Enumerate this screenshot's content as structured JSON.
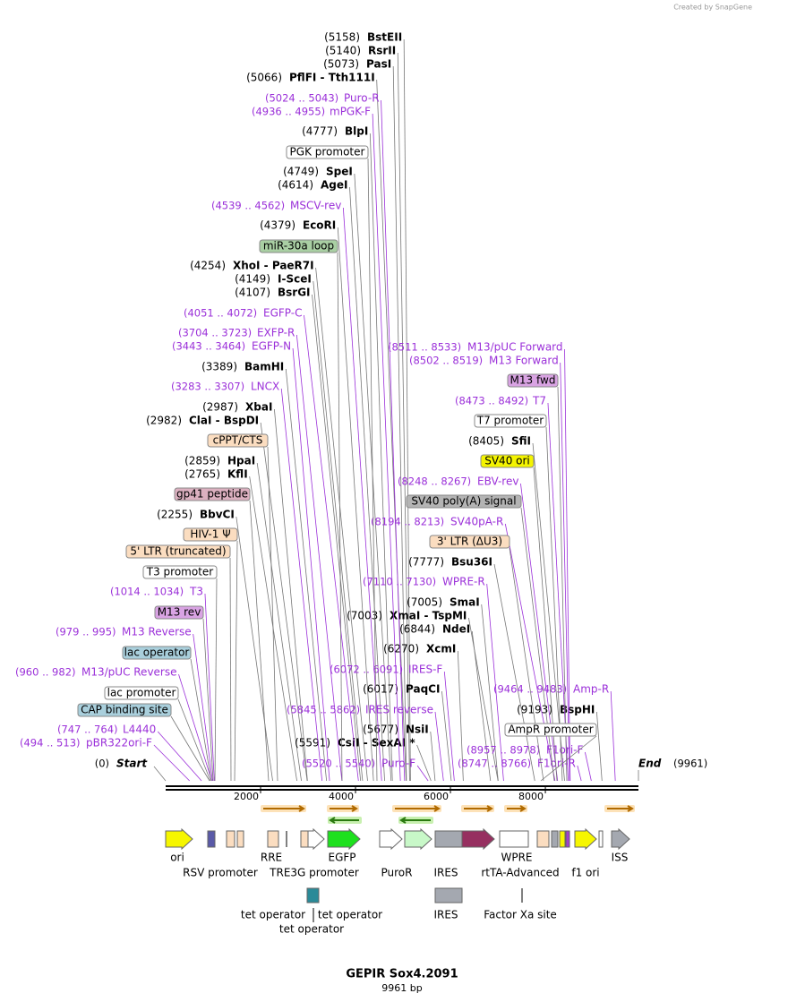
{
  "header": {
    "credit": "Created by SnapGene"
  },
  "enzymes": [
    {
      "location": "(5158)",
      "name": "BstEII"
    },
    {
      "location": "(5140)",
      "name": "RsrII"
    },
    {
      "location": "(5073)",
      "name": "PasI"
    },
    {
      "location": "(5066)",
      "name": "PflFI  - Tth111I"
    },
    {
      "location": "(4777)",
      "name": "BlpI"
    },
    {
      "location": "(4749)",
      "name": "SpeI"
    },
    {
      "location": "(4614)",
      "name": "AgeI"
    },
    {
      "location": "(4379)",
      "name": "EcoRI"
    },
    {
      "location": "(4254)",
      "name": "XhoI  - PaeR7I"
    },
    {
      "location": "(4149)",
      "name": "I-SceI"
    },
    {
      "location": "(4107)",
      "name": "BsrGI"
    },
    {
      "location": "(3389)",
      "name": "BamHI"
    },
    {
      "location": "(2987)",
      "name": "XbaI"
    },
    {
      "location": "(2982)",
      "name": "ClaI  - BspDI"
    },
    {
      "location": "(2859)",
      "name": "HpaI"
    },
    {
      "location": "(2765)",
      "name": "KflI"
    },
    {
      "location": "(2255)",
      "name": "BbvCI"
    },
    {
      "location": "(8405)",
      "name": "SfiI"
    },
    {
      "location": "(7777)",
      "name": "Bsu36I"
    },
    {
      "location": "(7005)",
      "name": "SmaI"
    },
    {
      "location": "(7003)",
      "name": "XmaI  - TspMI"
    },
    {
      "location": "(6844)",
      "name": "NdeI"
    },
    {
      "location": "(6270)",
      "name": "XcmI"
    },
    {
      "location": "(6017)",
      "name": "PaqCI"
    },
    {
      "location": "(5677)",
      "name": "NsiI"
    },
    {
      "location": "(5591)",
      "name": "CsiI  - SexAI *"
    },
    {
      "location": "(9193)",
      "name": "BspHI"
    }
  ],
  "primers": [
    {
      "location": "(5024 .. 5043)",
      "name": "Puro-R"
    },
    {
      "location": "(4936 .. 4955)",
      "name": "mPGK-F"
    },
    {
      "location": "(4539 .. 4562)",
      "name": "MSCV-rev"
    },
    {
      "location": "(4051 .. 4072)",
      "name": "EGFP-C"
    },
    {
      "location": "(3704 .. 3723)",
      "name": "EXFP-R"
    },
    {
      "location": "(3443 .. 3464)",
      "name": "EGFP-N"
    },
    {
      "location": "(3283 .. 3307)",
      "name": "LNCX"
    },
    {
      "location": "(8511 .. 8533)",
      "name": "M13/pUC Forward"
    },
    {
      "location": "(8502 .. 8519)",
      "name": "M13 Forward"
    },
    {
      "location": "(8473 .. 8492)",
      "name": "T7"
    },
    {
      "location": "(8248 .. 8267)",
      "name": "EBV-rev"
    },
    {
      "location": "(8194 .. 8213)",
      "name": "SV40pA-R"
    },
    {
      "location": "(7110 .. 7130)",
      "name": "WPRE-R"
    },
    {
      "location": "(1014 .. 1034)",
      "name": "T3"
    },
    {
      "location": "(979 .. 995)",
      "name": "M13 Reverse"
    },
    {
      "location": "(960 .. 982)",
      "name": "M13/pUC Reverse"
    },
    {
      "location": "(6072 .. 6091)",
      "name": "IRES-F"
    },
    {
      "location": "(5845 .. 5862)",
      "name": "IRES reverse"
    },
    {
      "location": "(9464 .. 9483)",
      "name": "Amp-R"
    },
    {
      "location": "(8957 .. 8978)",
      "name": "F1ori-F"
    },
    {
      "location": "(747 .. 764)",
      "name": "L4440"
    },
    {
      "location": "(494 .. 513)",
      "name": "pBR322ori-F"
    },
    {
      "location": "(5520 .. 5540)",
      "name": "Puro-F"
    },
    {
      "location": "(8747 .. 8766)",
      "name": "F1ori-R"
    }
  ],
  "feature_labels": [
    "PGK promoter",
    "miR-30a loop",
    "cPPT/CTS",
    "gp41 peptide",
    "HIV-1 Ψ",
    "5' LTR (truncated)",
    "T3 promoter",
    "M13 rev",
    "lac operator",
    "lac promoter",
    "CAP binding site",
    "M13 fwd",
    "T7 promoter",
    "SV40 ori",
    "SV40 poly(A) signal",
    "3' LTR (ΔU3)",
    "AmpR promoter"
  ],
  "map": {
    "start": {
      "location": "(0)",
      "name": "Start"
    },
    "end": {
      "name": "End",
      "location": "(9961)"
    },
    "ticks": [
      2000,
      4000,
      6000,
      8000
    ]
  },
  "track_labels": [
    "ori",
    "RSV promoter",
    "RRE",
    "TRE3G promoter",
    "EGFP",
    "PuroR",
    "IRES",
    "WPRE",
    "rtTA-Advanced",
    "f1 ori",
    "ISS"
  ],
  "track_labels_2": [
    "tet operator",
    "tet operator",
    "tet operator",
    "IRES",
    "Factor Xa site"
  ],
  "footer": {
    "title": "GEPIR Sox4.2091",
    "subtitle": "9961 bp"
  }
}
